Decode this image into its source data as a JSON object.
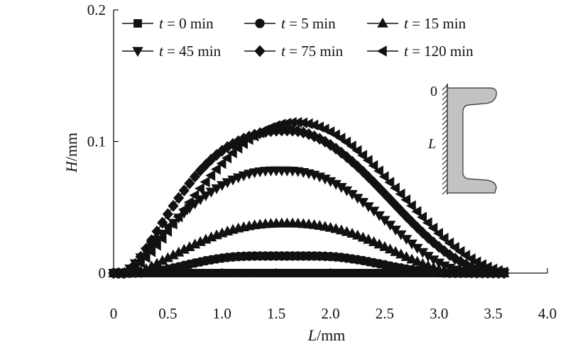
{
  "chart_data": {
    "type": "scatter",
    "title": "",
    "xlabel": {
      "var": "L",
      "unit": "/mm"
    },
    "ylabel": {
      "var": "H",
      "unit": "/mm"
    },
    "xlim": [
      0,
      4.0
    ],
    "ylim": [
      0,
      0.2
    ],
    "x_ticks": [
      "0",
      "0.5",
      "1.0",
      "1.5",
      "2.0",
      "2.5",
      "3.0",
      "3.5",
      "4.0"
    ],
    "y_ticks": [
      "0",
      "0.1",
      "0.2"
    ],
    "y_tick_values": [
      0,
      0.1,
      0.2
    ],
    "grid": false,
    "legend_position": "top",
    "series_color": "#111111",
    "x": [
      0.0,
      0.05,
      0.1,
      0.15,
      0.2,
      0.25,
      0.3,
      0.35,
      0.4,
      0.45,
      0.5,
      0.55,
      0.6,
      0.65,
      0.7,
      0.75,
      0.8,
      0.85,
      0.9,
      0.95,
      1.0,
      1.05,
      1.1,
      1.15,
      1.2,
      1.25,
      1.3,
      1.35,
      1.4,
      1.45,
      1.5,
      1.55,
      1.6,
      1.65,
      1.7,
      1.75,
      1.8,
      1.85,
      1.9,
      1.95,
      2.0,
      2.05,
      2.1,
      2.15,
      2.2,
      2.25,
      2.3,
      2.35,
      2.4,
      2.45,
      2.5,
      2.55,
      2.6,
      2.65,
      2.7,
      2.75,
      2.8,
      2.85,
      2.9,
      2.95,
      3.0,
      3.05,
      3.1,
      3.15,
      3.2,
      3.25,
      3.3,
      3.35,
      3.4,
      3.45,
      3.5,
      3.55,
      3.6
    ],
    "series": [
      {
        "legend_label": "t = 0 min",
        "legend_var": "t",
        "legend_rest": " = 0 min",
        "marker": "square",
        "values": [
          0.0,
          0.0,
          0.0,
          0.0,
          0.0,
          0.0,
          0.0,
          0.0,
          0.0,
          0.0,
          0.0,
          0.0,
          0.0,
          0.0,
          0.0,
          0.0,
          0.0,
          0.0,
          0.0,
          0.0,
          0.0,
          0.0,
          0.0,
          0.0,
          0.0,
          0.0,
          0.0,
          0.0,
          0.0,
          0.0,
          0.0,
          0.0,
          0.0,
          0.0,
          0.0,
          0.0,
          0.0,
          0.0,
          0.0,
          0.0,
          0.0,
          0.0,
          0.0,
          0.0,
          0.0,
          0.0,
          0.0,
          0.0,
          0.0,
          0.0,
          0.0,
          0.0,
          0.0,
          0.0,
          0.0,
          0.0,
          0.0,
          0.0,
          0.0,
          0.0,
          0.0,
          0.0,
          0.0,
          0.0,
          0.0,
          0.0,
          0.0,
          0.0,
          0.0,
          0.0,
          0.0,
          0.0,
          0.0
        ]
      },
      {
        "legend_label": "t = 5 min",
        "legend_var": "t",
        "legend_rest": " = 5 min",
        "marker": "circle",
        "values": [
          0.0,
          0.0,
          0.0,
          0.0,
          0.0001,
          0.0002,
          0.0005,
          0.0009,
          0.0015,
          0.0022,
          0.003,
          0.0039,
          0.0048,
          0.0058,
          0.0067,
          0.0077,
          0.0085,
          0.0094,
          0.0101,
          0.0108,
          0.0114,
          0.0119,
          0.0123,
          0.0126,
          0.0128,
          0.0129,
          0.013,
          0.013,
          0.013,
          0.013,
          0.013,
          0.013,
          0.013,
          0.013,
          0.013,
          0.013,
          0.013,
          0.013,
          0.0129,
          0.0128,
          0.0126,
          0.0123,
          0.0119,
          0.0114,
          0.0108,
          0.0102,
          0.0095,
          0.0087,
          0.0079,
          0.0071,
          0.0063,
          0.0054,
          0.0046,
          0.0039,
          0.0031,
          0.0025,
          0.0019,
          0.0013,
          0.0009,
          0.0005,
          0.0003,
          0.0001,
          0.0,
          0.0,
          0.0,
          0.0,
          0.0,
          0.0,
          0.0,
          0.0,
          0.0,
          0.0,
          0.0
        ]
      },
      {
        "legend_label": "t = 15 min",
        "legend_var": "t",
        "legend_rest": " = 15 min",
        "marker": "triangle-up",
        "values": [
          0.0,
          0.0,
          0.0,
          0.0,
          0.0004,
          0.0015,
          0.0031,
          0.0051,
          0.0072,
          0.0094,
          0.0115,
          0.0136,
          0.0157,
          0.0178,
          0.0198,
          0.0218,
          0.0237,
          0.0255,
          0.0272,
          0.0288,
          0.0303,
          0.0317,
          0.0329,
          0.034,
          0.0349,
          0.0357,
          0.0364,
          0.0369,
          0.0373,
          0.0375,
          0.0377,
          0.0378,
          0.0378,
          0.0378,
          0.0377,
          0.0374,
          0.0371,
          0.0366,
          0.036,
          0.0353,
          0.0345,
          0.0336,
          0.0325,
          0.0313,
          0.03,
          0.0286,
          0.027,
          0.0254,
          0.0236,
          0.0218,
          0.0199,
          0.018,
          0.0161,
          0.0142,
          0.0123,
          0.0104,
          0.0087,
          0.007,
          0.0055,
          0.0041,
          0.0029,
          0.0019,
          0.0011,
          0.0005,
          0.0002,
          0.0,
          0.0,
          0.0,
          0.0,
          0.0,
          0.0,
          0.0,
          0.0
        ]
      },
      {
        "legend_label": "t = 45 min",
        "legend_var": "t",
        "legend_rest": " = 45 min",
        "marker": "triangle-down",
        "values": [
          0.0,
          0.0,
          0.0,
          0.0034,
          0.0074,
          0.0118,
          0.0164,
          0.021,
          0.0255,
          0.0299,
          0.0341,
          0.0382,
          0.0421,
          0.0458,
          0.0494,
          0.0528,
          0.056,
          0.059,
          0.0618,
          0.0644,
          0.0668,
          0.069,
          0.071,
          0.0727,
          0.0742,
          0.0755,
          0.0765,
          0.0772,
          0.0777,
          0.0779,
          0.0779,
          0.0779,
          0.0779,
          0.0778,
          0.0774,
          0.0767,
          0.0758,
          0.0747,
          0.0733,
          0.0717,
          0.0698,
          0.0677,
          0.0654,
          0.0628,
          0.0601,
          0.0571,
          0.054,
          0.0507,
          0.0474,
          0.0439,
          0.0403,
          0.0367,
          0.033,
          0.0294,
          0.0259,
          0.0224,
          0.0191,
          0.0159,
          0.013,
          0.0103,
          0.0079,
          0.0057,
          0.004,
          0.0026,
          0.0015,
          0.0008,
          0.0003,
          0.0,
          0.0,
          0.0,
          0.0,
          0.0,
          0.0
        ]
      },
      {
        "legend_label": "t = 75 min",
        "legend_var": "t",
        "legend_rest": " = 75 min",
        "marker": "diamond",
        "values": [
          0.0,
          0.0,
          0.0,
          0.0027,
          0.0069,
          0.0124,
          0.0185,
          0.025,
          0.0317,
          0.0383,
          0.0448,
          0.0511,
          0.0571,
          0.0628,
          0.0682,
          0.0733,
          0.078,
          0.0823,
          0.0863,
          0.0898,
          0.093,
          0.0958,
          0.0982,
          0.1003,
          0.1022,
          0.1038,
          0.1052,
          0.1064,
          0.1073,
          0.1079,
          0.1082,
          0.1084,
          0.1084,
          0.1083,
          0.1078,
          0.1069,
          0.1056,
          0.104,
          0.1021,
          0.0999,
          0.0974,
          0.0946,
          0.0915,
          0.0882,
          0.0847,
          0.081,
          0.0771,
          0.073,
          0.0689,
          0.0646,
          0.0603,
          0.056,
          0.0516,
          0.0473,
          0.043,
          0.0388,
          0.0347,
          0.0307,
          0.0269,
          0.0233,
          0.0199,
          0.0167,
          0.0137,
          0.011,
          0.0086,
          0.0065,
          0.0047,
          0.0032,
          0.002,
          0.0011,
          0.0005,
          0.0001,
          0.0
        ]
      },
      {
        "legend_label": "t = 120 min",
        "legend_var": "t",
        "legend_rest": " = 120 min",
        "marker": "triangle-left",
        "values": [
          0.0,
          0.0,
          0.0004,
          0.0019,
          0.0044,
          0.0078,
          0.0118,
          0.0163,
          0.0212,
          0.0264,
          0.0318,
          0.0373,
          0.0428,
          0.0483,
          0.0537,
          0.0591,
          0.0643,
          0.0693,
          0.0742,
          0.0789,
          0.0833,
          0.0875,
          0.0914,
          0.095,
          0.0984,
          0.1015,
          0.1042,
          0.1067,
          0.1088,
          0.1106,
          0.1121,
          0.1132,
          0.114,
          0.1145,
          0.1145,
          0.1142,
          0.1135,
          0.1125,
          0.1111,
          0.1094,
          0.1074,
          0.1051,
          0.1025,
          0.0996,
          0.0965,
          0.0931,
          0.0895,
          0.0857,
          0.0817,
          0.0776,
          0.0733,
          0.069,
          0.0646,
          0.0601,
          0.0557,
          0.0512,
          0.0468,
          0.0425,
          0.0383,
          0.0342,
          0.0302,
          0.0265,
          0.0229,
          0.0195,
          0.0164,
          0.0135,
          0.0109,
          0.0085,
          0.0064,
          0.0046,
          0.0031,
          0.0019,
          0.0009
        ]
      }
    ],
    "inset": {
      "top_label": "0",
      "side_label": "L"
    }
  }
}
